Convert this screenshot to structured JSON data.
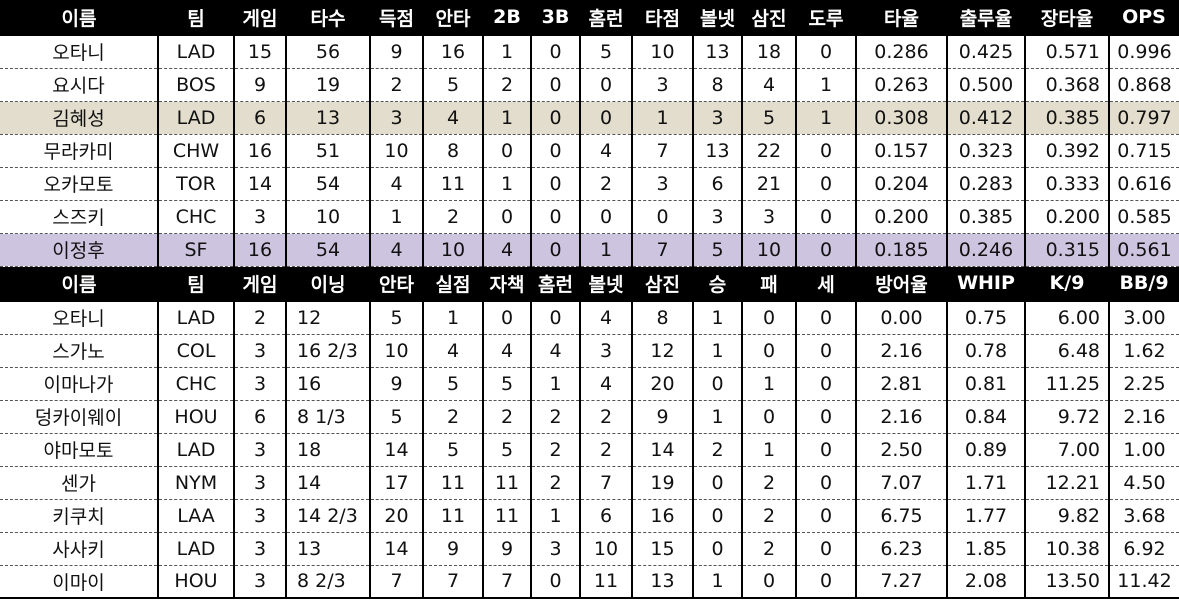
{
  "colors": {
    "header_bg": "#000000",
    "header_text": "#ffffff",
    "highlight_kim": "#e2ddcc",
    "highlight_lee": "#cdc5e0"
  },
  "batting": {
    "headers": [
      "이름",
      "팀",
      "게임",
      "타수",
      "득점",
      "안타",
      "2B",
      "3B",
      "홈런",
      "타점",
      "볼넷",
      "삼진",
      "도루",
      "타율",
      "출루율",
      "장타율",
      "OPS"
    ],
    "rows": [
      [
        "오타니",
        "LAD",
        "15",
        "56",
        "9",
        "16",
        "1",
        "0",
        "5",
        "10",
        "13",
        "18",
        "0",
        "0.286",
        "0.425",
        "0.571",
        "0.996"
      ],
      [
        "요시다",
        "BOS",
        "9",
        "19",
        "2",
        "5",
        "2",
        "0",
        "0",
        "3",
        "8",
        "4",
        "1",
        "0.263",
        "0.500",
        "0.368",
        "0.868"
      ],
      [
        "김혜성",
        "LAD",
        "6",
        "13",
        "3",
        "4",
        "1",
        "0",
        "0",
        "1",
        "3",
        "5",
        "1",
        "0.308",
        "0.412",
        "0.385",
        "0.797"
      ],
      [
        "무라카미",
        "CHW",
        "16",
        "51",
        "10",
        "8",
        "0",
        "0",
        "4",
        "7",
        "13",
        "22",
        "0",
        "0.157",
        "0.323",
        "0.392",
        "0.715"
      ],
      [
        "오카모토",
        "TOR",
        "14",
        "54",
        "4",
        "11",
        "1",
        "0",
        "2",
        "3",
        "6",
        "21",
        "0",
        "0.204",
        "0.283",
        "0.333",
        "0.616"
      ],
      [
        "스즈키",
        "CHC",
        "3",
        "10",
        "1",
        "2",
        "0",
        "0",
        "0",
        "0",
        "3",
        "3",
        "0",
        "0.200",
        "0.385",
        "0.200",
        "0.585"
      ],
      [
        "이정후",
        "SF",
        "16",
        "54",
        "4",
        "10",
        "4",
        "0",
        "1",
        "7",
        "5",
        "10",
        "0",
        "0.185",
        "0.246",
        "0.315",
        "0.561"
      ]
    ],
    "highlight": {
      "2": "gold",
      "6": "purple"
    }
  },
  "pitching": {
    "headers": [
      "이름",
      "팀",
      "게임",
      "이닝",
      "안타",
      "실점",
      "자책",
      "홈런",
      "볼넷",
      "삼진",
      "승",
      "패",
      "세",
      "방어율",
      "WHIP",
      "K/9",
      "BB/9"
    ],
    "rows": [
      [
        "오타니",
        "LAD",
        "2",
        "12",
        "5",
        "1",
        "0",
        "0",
        "4",
        "8",
        "1",
        "0",
        "0",
        "0.00",
        "0.75",
        "6.00",
        "3.00"
      ],
      [
        "스가노",
        "COL",
        "3",
        "16 2/3",
        "10",
        "4",
        "4",
        "4",
        "3",
        "12",
        "1",
        "0",
        "0",
        "2.16",
        "0.78",
        "6.48",
        "1.62"
      ],
      [
        "이마나가",
        "CHC",
        "3",
        "16",
        "9",
        "5",
        "5",
        "1",
        "4",
        "20",
        "0",
        "1",
        "0",
        "2.81",
        "0.81",
        "11.25",
        "2.25"
      ],
      [
        "덩카이웨이",
        "HOU",
        "6",
        "8 1/3",
        "5",
        "2",
        "2",
        "2",
        "2",
        "9",
        "1",
        "0",
        "0",
        "2.16",
        "0.84",
        "9.72",
        "2.16"
      ],
      [
        "야마모토",
        "LAD",
        "3",
        "18",
        "14",
        "5",
        "5",
        "2",
        "2",
        "14",
        "2",
        "1",
        "0",
        "2.50",
        "0.89",
        "7.00",
        "1.00"
      ],
      [
        "센가",
        "NYM",
        "3",
        "14",
        "17",
        "11",
        "11",
        "2",
        "7",
        "19",
        "0",
        "2",
        "0",
        "7.07",
        "1.71",
        "12.21",
        "4.50"
      ],
      [
        "키쿠치",
        "LAA",
        "3",
        "14 2/3",
        "20",
        "11",
        "11",
        "1",
        "6",
        "16",
        "0",
        "2",
        "0",
        "6.75",
        "1.77",
        "9.82",
        "3.68"
      ],
      [
        "사사키",
        "LAD",
        "3",
        "13",
        "14",
        "9",
        "9",
        "3",
        "10",
        "15",
        "0",
        "2",
        "0",
        "6.23",
        "1.85",
        "10.38",
        "6.92"
      ],
      [
        "이마이",
        "HOU",
        "3",
        "8 2/3",
        "7",
        "7",
        "7",
        "0",
        "11",
        "13",
        "1",
        "0",
        "0",
        "7.27",
        "2.08",
        "13.50",
        "11.42"
      ]
    ]
  }
}
